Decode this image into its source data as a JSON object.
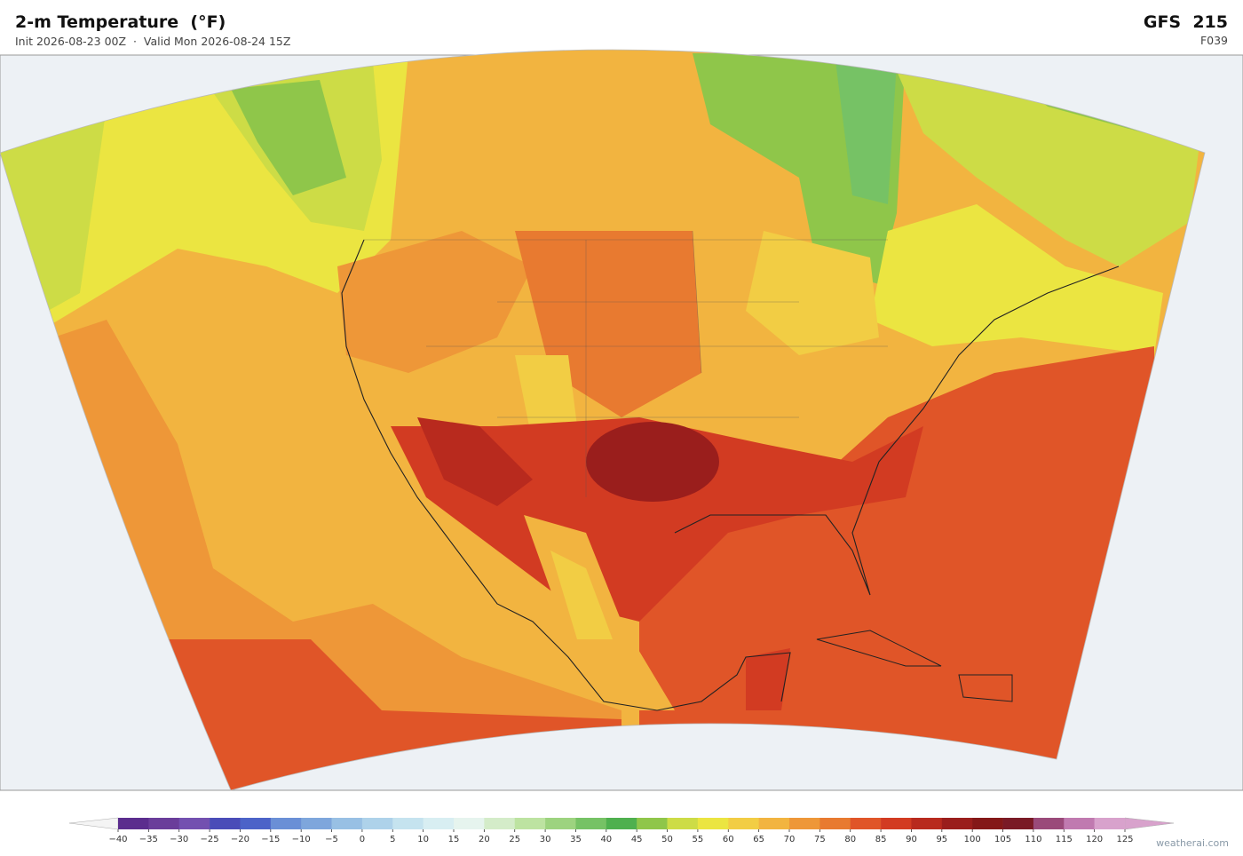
{
  "header": {
    "title": "2-m Temperature  (°F)",
    "subtitle": "Init 2026-08-23 00Z  ·  Valid Mon 2026-08-24 15Z",
    "model": "GFS  215",
    "forecast_hour": "F039"
  },
  "colorbar": {
    "ticks": [
      {
        "value": -40,
        "label": "−40"
      },
      {
        "value": -35,
        "label": "−35"
      },
      {
        "value": -30,
        "label": "−30"
      },
      {
        "value": -25,
        "label": "−25"
      },
      {
        "value": -20,
        "label": "−20"
      },
      {
        "value": -15,
        "label": "−15"
      },
      {
        "value": -10,
        "label": "−10"
      },
      {
        "value": -5,
        "label": "−5"
      },
      0,
      5,
      10,
      15,
      20,
      25,
      30,
      35,
      40,
      45,
      50,
      55,
      60,
      65,
      70,
      75,
      80,
      85,
      90,
      95,
      100,
      105,
      110,
      115,
      120,
      125
    ],
    "colors": [
      "#5b2d8e",
      "#6a3d9a",
      "#7350b0",
      "#4a4cb8",
      "#4c63c8",
      "#6a8fd6",
      "#7ea6dc",
      "#98c0e4",
      "#aed2ea",
      "#c5e3ef",
      "#d8eef2",
      "#e6f4ee",
      "#d4ecc9",
      "#bde3a1",
      "#9dd37f",
      "#76c265",
      "#4fb04f",
      "#8fc64a",
      "#cddc46",
      "#ebe541",
      "#f2cd44",
      "#f2b440",
      "#ee9738",
      "#e87a30",
      "#e05528",
      "#d23b22",
      "#b82a1e",
      "#9a1e1c",
      "#841818",
      "#7a1a26",
      "#9a4a7a",
      "#c07ab0",
      "#d8a2cc"
    ]
  },
  "watermark": "weatherai.com"
}
